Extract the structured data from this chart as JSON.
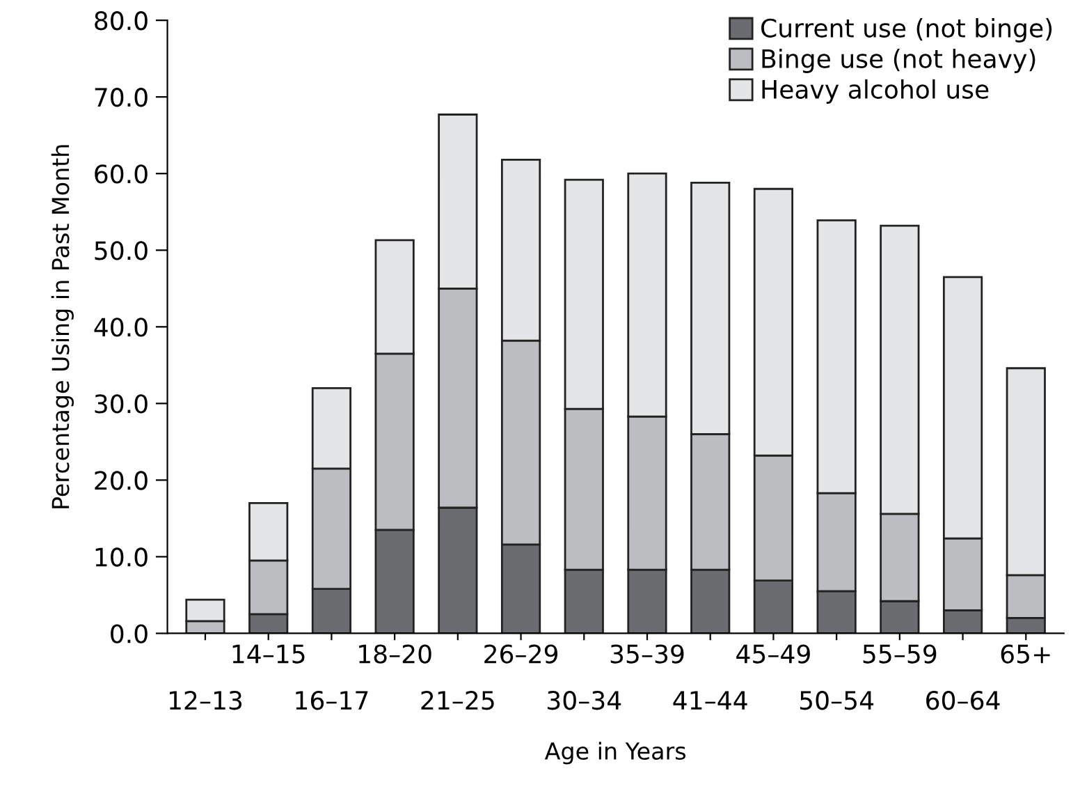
{
  "chart_data": {
    "type": "bar",
    "stacked": true,
    "xlabel": "Age in Years",
    "ylabel": "Percentage Using in Past Month",
    "categories": [
      "12–13",
      "14–15",
      "16–17",
      "18–20",
      "21–25",
      "26–29",
      "30–34",
      "35–39",
      "41–44",
      "45–49",
      "50–54",
      "55–59",
      "60–64",
      "65+"
    ],
    "series": [
      {
        "name": "Current use (not binge)",
        "color": "#6b6c70",
        "values": [
          0,
          2.5,
          5.8,
          13.5,
          16.4,
          11.6,
          8.3,
          8.3,
          8.3,
          6.9,
          5.5,
          4.2,
          3.0,
          2.0
        ]
      },
      {
        "name": "Binge use (not heavy)",
        "color": "#bcbdc1",
        "values": [
          1.6,
          7.0,
          15.7,
          23.0,
          28.6,
          26.6,
          21.0,
          20.0,
          17.7,
          16.3,
          12.8,
          11.4,
          9.4,
          5.6
        ]
      },
      {
        "name": "Heavy alcohol use",
        "color": "#e4e5e7",
        "values": [
          2.8,
          7.5,
          10.5,
          14.8,
          22.7,
          23.6,
          29.9,
          31.7,
          32.8,
          34.8,
          35.6,
          37.6,
          34.1,
          27.0
        ]
      }
    ],
    "ylim": [
      0,
      80
    ],
    "yticks": [
      {
        "value": 0,
        "label": "0.0"
      },
      {
        "value": 10,
        "label": "10.0"
      },
      {
        "value": 20,
        "label": "20.0"
      },
      {
        "value": 30,
        "label": "30.0"
      },
      {
        "value": 40,
        "label": "40.0"
      },
      {
        "value": 50,
        "label": "50.0"
      },
      {
        "value": 60,
        "label": "60.0"
      },
      {
        "value": 70,
        "label": "70.0"
      },
      {
        "value": 80,
        "label": "80.0"
      }
    ],
    "legend": "top right",
    "grid": false
  }
}
